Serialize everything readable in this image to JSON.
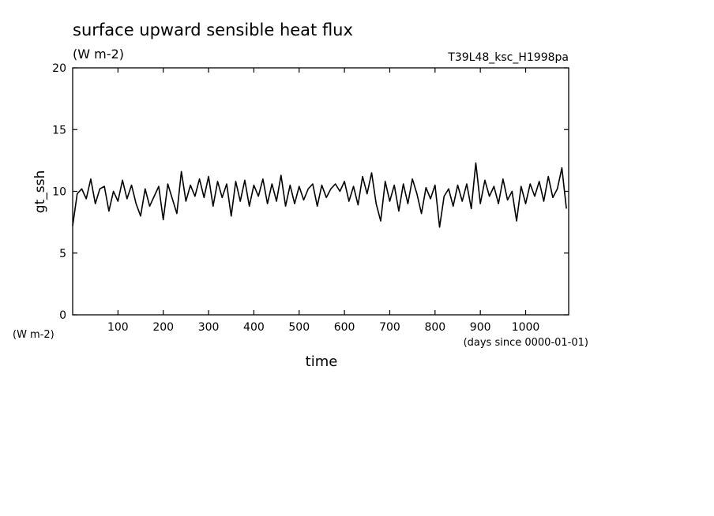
{
  "chart_data": {
    "type": "line",
    "title": "surface upward sensible heat flux",
    "subtitle": "(W m-2)",
    "annotation": "T39L48_ksc_H1998pa",
    "y_label": "gt_ssh",
    "y_unit": "(W m-2)",
    "x_label": "time",
    "x_unit": "(days since 0000-01-01)",
    "color": "#000000",
    "x": [
      0,
      10,
      20,
      30,
      40,
      50,
      60,
      70,
      80,
      90,
      100,
      110,
      120,
      130,
      140,
      150,
      160,
      170,
      180,
      190,
      200,
      210,
      220,
      230,
      240,
      250,
      260,
      270,
      280,
      290,
      300,
      310,
      320,
      330,
      340,
      350,
      360,
      370,
      380,
      390,
      400,
      410,
      420,
      430,
      440,
      450,
      460,
      470,
      480,
      490,
      500,
      510,
      520,
      530,
      540,
      550,
      560,
      570,
      580,
      590,
      600,
      610,
      620,
      630,
      640,
      650,
      660,
      670,
      680,
      690,
      700,
      710,
      720,
      730,
      740,
      750,
      760,
      770,
      780,
      790,
      800,
      810,
      820,
      830,
      840,
      850,
      860,
      870,
      880,
      890,
      900,
      910,
      920,
      930,
      940,
      950,
      960,
      970,
      980,
      990,
      1000,
      1010,
      1020,
      1030,
      1040,
      1050,
      1060,
      1070,
      1080,
      1090
    ],
    "values": [
      7.2,
      9.8,
      10.2,
      9.4,
      11.0,
      9.0,
      10.2,
      10.4,
      8.4,
      10.0,
      9.2,
      10.9,
      9.4,
      10.5,
      9.0,
      8.0,
      10.2,
      8.8,
      9.6,
      10.4,
      7.7,
      10.6,
      9.4,
      8.2,
      11.6,
      9.2,
      10.5,
      9.6,
      11.0,
      9.5,
      11.2,
      8.8,
      10.8,
      9.5,
      10.6,
      8.0,
      10.8,
      9.2,
      10.9,
      8.8,
      10.5,
      9.6,
      11.0,
      9.0,
      10.6,
      9.2,
      11.3,
      8.8,
      10.5,
      9.0,
      10.4,
      9.3,
      10.2,
      10.6,
      8.8,
      10.5,
      9.5,
      10.2,
      10.6,
      10.0,
      10.8,
      9.2,
      10.4,
      8.9,
      11.2,
      9.8,
      11.5,
      9.0,
      7.6,
      10.8,
      9.2,
      10.5,
      8.4,
      10.6,
      9.0,
      11.0,
      9.8,
      8.2,
      10.3,
      9.4,
      10.5,
      7.1,
      9.6,
      10.2,
      8.8,
      10.5,
      9.2,
      10.6,
      8.6,
      12.3,
      9.0,
      10.9,
      9.6,
      10.4,
      9.0,
      11.0,
      9.3,
      10.0,
      7.6,
      10.4,
      9.0,
      10.6,
      9.6,
      10.8,
      9.2,
      11.2,
      9.5,
      10.2,
      11.9,
      8.6
    ],
    "xlim": [
      0,
      1095
    ],
    "ylim": [
      0,
      20
    ],
    "xticks": [
      100,
      200,
      300,
      400,
      500,
      600,
      700,
      800,
      900,
      1000
    ],
    "yticks": [
      0,
      5,
      10,
      15,
      20
    ]
  }
}
